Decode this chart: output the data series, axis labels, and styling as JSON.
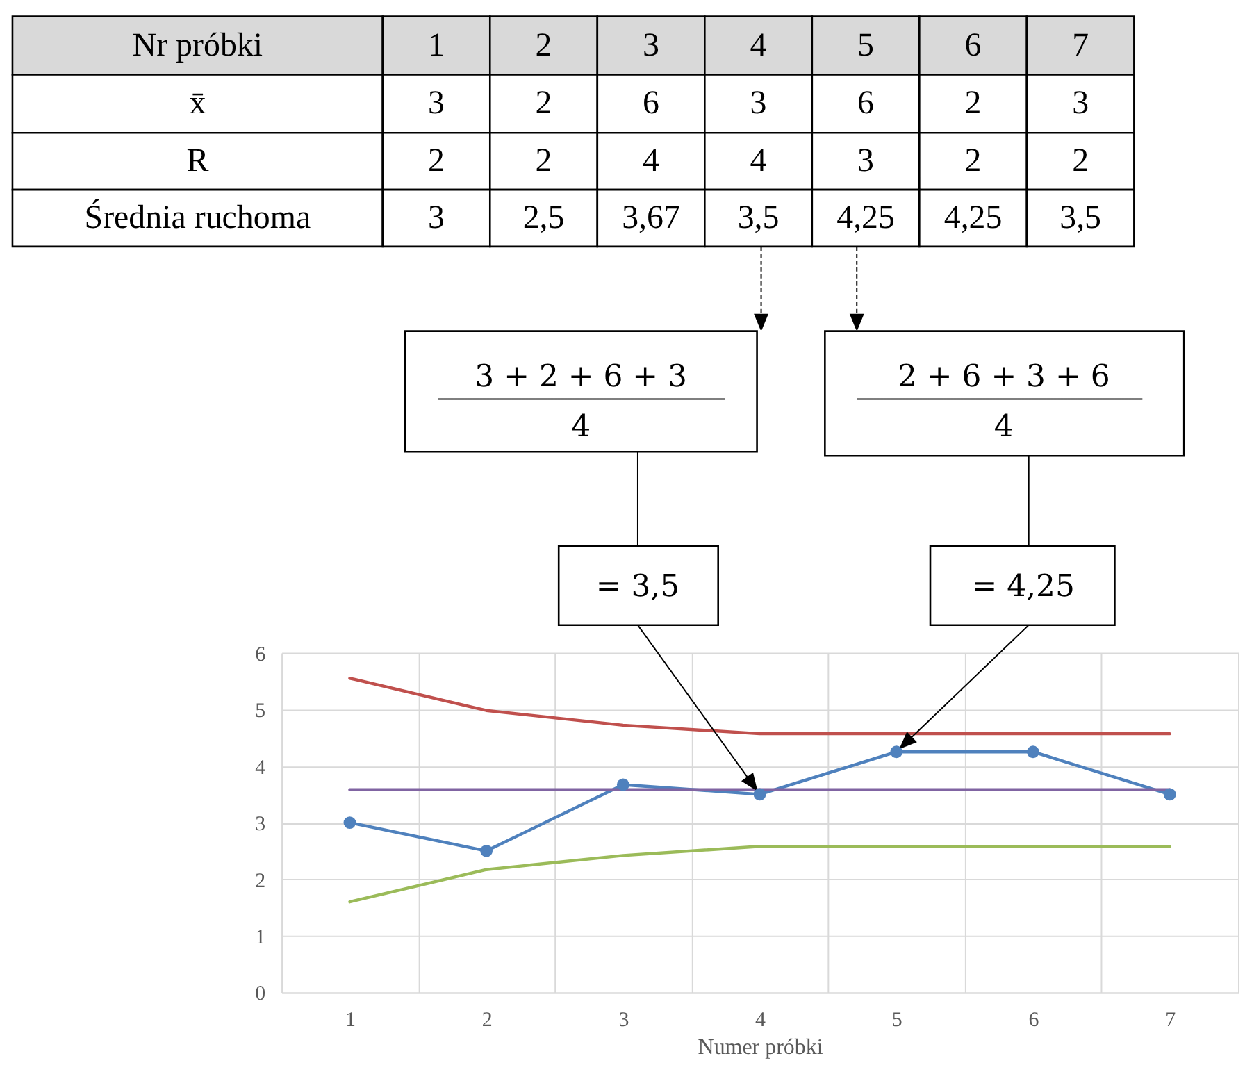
{
  "chart_data": {
    "type": "line",
    "xlabel": "Numer próbki",
    "categories": [
      "1",
      "2",
      "3",
      "4",
      "5",
      "6",
      "7"
    ],
    "series": [
      {
        "color": "#4f81bd",
        "marker": "circle",
        "values": [
          3,
          2.5,
          3.67,
          3.5,
          4.25,
          4.25,
          3.5
        ]
      },
      {
        "color": "#c0504d",
        "values": [
          5.55,
          4.98,
          4.72,
          4.57,
          4.57,
          4.57,
          4.57
        ]
      },
      {
        "color": "#9bbb59",
        "values": [
          1.6,
          2.17,
          2.42,
          2.58,
          2.58,
          2.58,
          2.58
        ]
      },
      {
        "color": "#8064a2",
        "values": [
          3.58,
          3.58,
          3.58,
          3.58,
          3.58,
          3.58,
          3.58
        ]
      }
    ],
    "ylim": [
      0,
      6
    ],
    "yticks": [
      0,
      1,
      2,
      3,
      4,
      5,
      6
    ],
    "grid": true,
    "annotations": [
      "Nr próbki",
      "x̄",
      "3",
      "2",
      "6",
      "3",
      "6",
      "2",
      "3",
      "R",
      "2",
      "2",
      "4",
      "4",
      "3",
      "2",
      "2",
      "Średnia ruchoma",
      "3",
      "2,5",
      "3,67",
      "3,5",
      "4,25",
      "4,25",
      "3,5",
      "3 + 2 + 6 + 3",
      "4",
      "2 + 6 + 3 + 6",
      "4",
      {
        "text": "= 3,5",
        "x": "4",
        "y": 3.5
      },
      {
        "text": "= 4,25",
        "x": "5",
        "y": 4.25
      }
    ]
  }
}
